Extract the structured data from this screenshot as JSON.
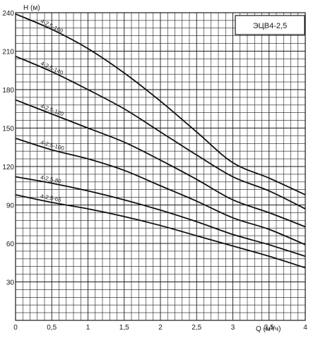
{
  "chart_data": {
    "type": "line",
    "title": "ЭЦВ4-2,5",
    "xlabel": "Q (м³/ч)",
    "ylabel": "H (м)",
    "xlim": [
      0,
      4
    ],
    "ylim": [
      0,
      240
    ],
    "x_ticks": [
      "0",
      "0,5",
      "1",
      "1,5",
      "2",
      "2,5",
      "3",
      "3,5",
      "4"
    ],
    "y_ticks": [
      "30",
      "60",
      "90",
      "120",
      "150",
      "180",
      "210",
      "240"
    ],
    "grid": true,
    "series": [
      {
        "name": "4-2,5-160",
        "points": [
          [
            0,
            239
          ],
          [
            0.5,
            227
          ],
          [
            1,
            212
          ],
          [
            1.5,
            193
          ],
          [
            2,
            171
          ],
          [
            2.5,
            147
          ],
          [
            3,
            123
          ],
          [
            3.5,
            111
          ],
          [
            4,
            98
          ]
        ]
      },
      {
        "name": "4-2,5-140",
        "points": [
          [
            0,
            206
          ],
          [
            0.5,
            194
          ],
          [
            1,
            180
          ],
          [
            1.5,
            165
          ],
          [
            2,
            147
          ],
          [
            2.5,
            129
          ],
          [
            3,
            112
          ],
          [
            3.5,
            101
          ],
          [
            4,
            87
          ]
        ]
      },
      {
        "name": "4-2,5-120",
        "points": [
          [
            0,
            172
          ],
          [
            0.5,
            161
          ],
          [
            1,
            150
          ],
          [
            1.5,
            139
          ],
          [
            2,
            125
          ],
          [
            2.5,
            110
          ],
          [
            3,
            94
          ],
          [
            3.5,
            84
          ],
          [
            4,
            73
          ]
        ]
      },
      {
        "name": "4-2,5-100",
        "points": [
          [
            0,
            142
          ],
          [
            0.5,
            133
          ],
          [
            1,
            126
          ],
          [
            1.5,
            117
          ],
          [
            2,
            105
          ],
          [
            2.5,
            93
          ],
          [
            3,
            80
          ],
          [
            3.5,
            71
          ],
          [
            4,
            59
          ]
        ]
      },
      {
        "name": "4-2,5-80",
        "points": [
          [
            0,
            112
          ],
          [
            0.5,
            107
          ],
          [
            1,
            101
          ],
          [
            1.5,
            94
          ],
          [
            2,
            86
          ],
          [
            2.5,
            77
          ],
          [
            3,
            67
          ],
          [
            3.5,
            59
          ],
          [
            4,
            50
          ]
        ]
      },
      {
        "name": "4-2,5-65",
        "points": [
          [
            0,
            98
          ],
          [
            0.5,
            92
          ],
          [
            1,
            87
          ],
          [
            1.5,
            81
          ],
          [
            2,
            74
          ],
          [
            2.5,
            66
          ],
          [
            3,
            58
          ],
          [
            3.5,
            50
          ],
          [
            4,
            41
          ]
        ]
      }
    ]
  }
}
